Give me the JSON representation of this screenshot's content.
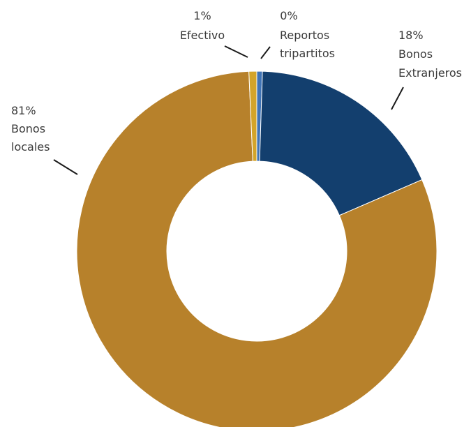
{
  "chart_data": {
    "type": "pie",
    "variant": "donut",
    "title": "",
    "slices": [
      {
        "label": "Reportos tripartitos",
        "label_lines": [
          "Reportos",
          "tripartitos"
        ],
        "value": 0.5,
        "display": "0%",
        "color": "#3f73b5"
      },
      {
        "label": "Bonos Extranjeros",
        "label_lines": [
          "Bonos",
          "Extranjeros"
        ],
        "value": 18,
        "display": "18%",
        "color": "#133f6e"
      },
      {
        "label": "Bonos locales",
        "label_lines": [
          "Bonos",
          "locales"
        ],
        "value": 80.8,
        "display": "81%",
        "color": "#b7812b"
      },
      {
        "label": "Efectivo",
        "label_lines": [
          "Efectivo"
        ],
        "value": 0.7,
        "display": "1%",
        "color": "#d3a42a"
      }
    ],
    "start_angle_deg": 0,
    "direction": "clockwise",
    "legend": "none",
    "data_labels": "outside with leader lines"
  }
}
